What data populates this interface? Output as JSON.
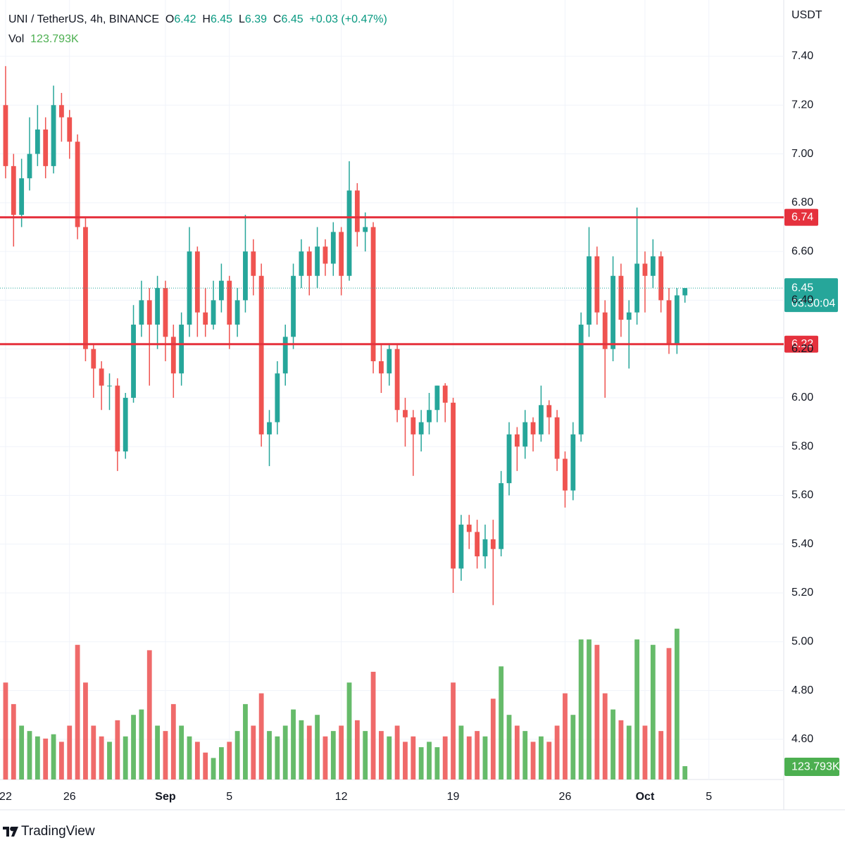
{
  "chart_data": {
    "type": "candlestick",
    "header": {
      "symbol": "UNI / TetherUS, 4h, BINANCE",
      "o_label": "O",
      "o_value": "6.42",
      "h_label": "H",
      "h_value": "6.45",
      "l_label": "L",
      "l_value": "6.39",
      "c_label": "C",
      "c_value": "6.45",
      "change": "+0.03 (+0.47%)",
      "vol_label": "Vol",
      "vol_value": "123.793K"
    },
    "currency": "USDT",
    "up_color": "#26a69a",
    "down_color": "#ef5350",
    "volume_up_color": "#66bb6a",
    "volume_down_color": "#ef6a6a",
    "grid": true,
    "x": [
      0,
      0.5,
      1,
      1.5,
      2,
      2.5,
      3,
      3.5,
      4,
      4.5,
      5,
      5.5,
      6,
      6.5,
      7,
      7.5,
      8,
      8.5,
      9,
      9.5,
      10,
      10.5,
      11,
      11.5,
      12,
      12.5,
      13,
      13.5,
      14,
      14.5,
      15,
      15.5,
      16,
      16.5,
      17,
      17.5,
      18,
      18.5,
      19,
      19.5,
      20,
      20.5,
      21,
      21.5,
      22,
      22.5,
      23,
      23.5,
      24,
      24.5,
      25,
      25.5,
      26,
      26.5,
      27,
      27.5,
      28,
      28.5,
      29,
      29.5,
      30,
      30.5,
      31,
      31.5,
      32,
      32.5,
      33,
      33.5,
      34,
      34.5,
      35,
      35.5,
      36,
      36.5,
      37,
      37.5,
      38,
      38.5,
      39,
      39.5,
      40,
      40.5,
      41,
      41.5,
      42,
      42.5
    ],
    "open": [
      7.2,
      6.95,
      6.75,
      6.9,
      7.0,
      7.1,
      6.95,
      7.2,
      7.15,
      7.05,
      6.7,
      6.2,
      6.12,
      6.05,
      6.05,
      5.78,
      6.0,
      6.3,
      6.4,
      6.3,
      6.45,
      6.25,
      6.1,
      6.3,
      6.6,
      6.35,
      6.3,
      6.4,
      6.48,
      6.3,
      6.4,
      6.6,
      6.5,
      5.85,
      5.9,
      6.1,
      6.25,
      6.5,
      6.6,
      6.5,
      6.62,
      6.55,
      6.68,
      6.5,
      6.85,
      6.68,
      6.7,
      6.15,
      6.1,
      6.2,
      5.95,
      5.92,
      5.85,
      5.9,
      5.95,
      6.05,
      5.98,
      5.3,
      5.48,
      5.45,
      5.35,
      5.42,
      5.38,
      5.65,
      5.85,
      5.8,
      5.9,
      5.85,
      5.97,
      5.92,
      5.75,
      5.62,
      5.85,
      6.3,
      6.58,
      6.35,
      6.2,
      6.5,
      6.32,
      6.35,
      6.55,
      6.5,
      6.58,
      6.4,
      6.22,
      6.42
    ],
    "high": [
      7.36,
      7.0,
      6.98,
      7.15,
      7.2,
      7.15,
      7.28,
      7.25,
      7.18,
      7.08,
      6.74,
      6.22,
      6.15,
      6.1,
      6.08,
      6.02,
      6.38,
      6.48,
      6.45,
      6.5,
      6.48,
      6.3,
      6.35,
      6.7,
      6.62,
      6.45,
      6.48,
      6.55,
      6.5,
      6.45,
      6.75,
      6.65,
      6.55,
      5.95,
      6.15,
      6.3,
      6.55,
      6.65,
      6.62,
      6.7,
      6.65,
      6.72,
      6.7,
      6.97,
      6.88,
      6.76,
      6.72,
      6.22,
      6.22,
      6.22,
      6.0,
      5.95,
      5.95,
      6.02,
      6.05,
      6.06,
      6.0,
      5.52,
      5.52,
      5.5,
      5.48,
      5.5,
      5.7,
      5.9,
      5.88,
      5.95,
      5.92,
      6.05,
      5.99,
      5.95,
      5.78,
      5.9,
      6.35,
      6.7,
      6.62,
      6.4,
      6.58,
      6.55,
      6.4,
      6.78,
      6.6,
      6.65,
      6.6,
      6.45,
      6.45,
      6.45
    ],
    "low": [
      6.9,
      6.62,
      6.7,
      6.85,
      6.95,
      6.9,
      6.92,
      7.05,
      6.98,
      6.65,
      6.15,
      6.0,
      5.95,
      5.95,
      5.7,
      5.75,
      5.98,
      6.25,
      6.05,
      6.2,
      6.15,
      6.0,
      6.05,
      6.25,
      6.25,
      6.25,
      6.28,
      6.35,
      6.2,
      6.25,
      6.35,
      6.42,
      5.8,
      5.72,
      5.85,
      6.05,
      6.2,
      6.45,
      6.42,
      6.45,
      6.5,
      6.5,
      6.42,
      6.48,
      6.62,
      6.6,
      6.1,
      6.02,
      6.05,
      5.9,
      5.8,
      5.68,
      5.78,
      5.85,
      5.9,
      5.9,
      5.2,
      5.25,
      5.38,
      5.3,
      5.3,
      5.15,
      5.35,
      5.6,
      5.7,
      5.75,
      5.78,
      5.82,
      5.85,
      5.7,
      5.55,
      5.58,
      5.82,
      6.25,
      6.3,
      6.0,
      6.15,
      6.25,
      6.12,
      6.3,
      6.35,
      6.45,
      6.35,
      6.18,
      6.18,
      6.39
    ],
    "close": [
      6.95,
      6.75,
      6.9,
      7.0,
      7.1,
      6.95,
      7.2,
      7.15,
      7.05,
      6.7,
      6.2,
      6.12,
      6.05,
      6.05,
      5.78,
      6.0,
      6.3,
      6.4,
      6.3,
      6.45,
      6.25,
      6.1,
      6.3,
      6.6,
      6.35,
      6.3,
      6.4,
      6.48,
      6.3,
      6.4,
      6.6,
      6.5,
      5.85,
      5.9,
      6.1,
      6.25,
      6.5,
      6.6,
      6.5,
      6.62,
      6.55,
      6.68,
      6.5,
      6.85,
      6.68,
      6.7,
      6.15,
      6.1,
      6.2,
      5.95,
      5.92,
      5.85,
      5.9,
      5.95,
      6.05,
      5.98,
      5.3,
      5.48,
      5.45,
      5.35,
      5.42,
      5.38,
      5.65,
      5.85,
      5.8,
      5.9,
      5.85,
      5.97,
      5.92,
      5.75,
      5.62,
      5.85,
      6.3,
      6.58,
      6.35,
      6.2,
      6.5,
      6.32,
      6.35,
      6.55,
      6.5,
      6.58,
      6.4,
      6.22,
      6.42,
      6.45
    ],
    "volume": [
      900,
      700,
      500,
      450,
      400,
      380,
      420,
      350,
      500,
      1250,
      900,
      500,
      400,
      350,
      550,
      400,
      600,
      650,
      1200,
      500,
      450,
      700,
      500,
      400,
      350,
      250,
      200,
      300,
      350,
      450,
      700,
      500,
      800,
      450,
      400,
      500,
      650,
      550,
      500,
      600,
      400,
      450,
      500,
      900,
      550,
      450,
      1000,
      450,
      400,
      500,
      350,
      400,
      300,
      350,
      300,
      400,
      900,
      500,
      400,
      450,
      400,
      750,
      1050,
      600,
      500,
      450,
      350,
      400,
      350,
      500,
      800,
      600,
      1300,
      1300,
      1250,
      800,
      650,
      550,
      500,
      1300,
      500,
      1250,
      450,
      1220,
      1400,
      123.793
    ],
    "volume_label": "123.793K",
    "xlim": [
      -0.35,
      48.68
    ],
    "ylim": [
      4.435,
      7.631
    ],
    "volume_ylim": [
      0,
      7235
    ],
    "xticks": [
      {
        "value": 0,
        "label": "22"
      },
      {
        "value": 4,
        "label": "26"
      },
      {
        "value": 10,
        "label": "Sep"
      },
      {
        "value": 14,
        "label": "5"
      },
      {
        "value": 21,
        "label": "12"
      },
      {
        "value": 28,
        "label": "19"
      },
      {
        "value": 35,
        "label": "26"
      },
      {
        "value": 40,
        "label": "Oct"
      },
      {
        "value": 44,
        "label": "5"
      }
    ],
    "yticks": [
      {
        "value": 4.6,
        "label": "4.60"
      },
      {
        "value": 4.8,
        "label": "4.80"
      },
      {
        "value": 5.0,
        "label": "5.00"
      },
      {
        "value": 5.2,
        "label": "5.20"
      },
      {
        "value": 5.4,
        "label": "5.40"
      },
      {
        "value": 5.6,
        "label": "5.60"
      },
      {
        "value": 5.8,
        "label": "5.80"
      },
      {
        "value": 6.0,
        "label": "6.00"
      },
      {
        "value": 6.2,
        "label": "6.20"
      },
      {
        "value": 6.4,
        "label": "6.40"
      },
      {
        "value": 6.6,
        "label": "6.60"
      },
      {
        "value": 6.8,
        "label": "6.80"
      },
      {
        "value": 7.0,
        "label": "7.00"
      },
      {
        "value": 7.2,
        "label": "7.20"
      },
      {
        "value": 7.4,
        "label": "7.40"
      }
    ],
    "levels": [
      {
        "value": 6.74,
        "label": "6.74",
        "color": "#e5313d"
      },
      {
        "value": 6.22,
        "label": "6.22",
        "color": "#e5313d"
      }
    ],
    "last_price": {
      "value": 6.45,
      "label": "6.45",
      "countdown": "03:30:04",
      "color": "#26a69a"
    },
    "volume_label_color": "#4caf50",
    "footer": {
      "brand": "TradingView"
    }
  }
}
